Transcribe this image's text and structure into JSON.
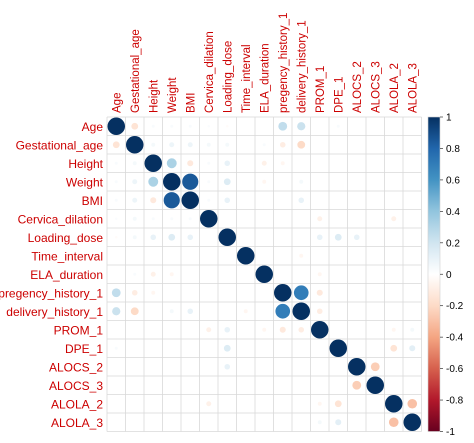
{
  "chart_data": {
    "type": "heatmap",
    "title": "",
    "variables": [
      "Age",
      "Gestational_age",
      "Height",
      "Weight",
      "BMI",
      "Cervica_dilation",
      "Loading_dose",
      "Time_interval",
      "ELA_duration",
      "pregency_history_1",
      "delivery_history_1",
      "PROM_1",
      "DPE_1",
      "ALOCS_2",
      "ALOCS_3",
      "ALOLA_2",
      "ALOLA_3"
    ],
    "matrix": [
      [
        1,
        -0.15,
        0.03,
        0.03,
        0.03,
        0.02,
        -0.02,
        0.0,
        0.0,
        0.25,
        0.22,
        0.0,
        0.03,
        0.0,
        0.0,
        0.0,
        0.0
      ],
      [
        -0.15,
        1,
        0.05,
        0.08,
        0.08,
        0.05,
        0.05,
        0.0,
        0.03,
        -0.1,
        -0.2,
        0.0,
        0.0,
        0.0,
        0.0,
        0.0,
        0.0
      ],
      [
        0.03,
        0.05,
        1,
        0.32,
        -0.12,
        0.03,
        0.1,
        0.0,
        -0.08,
        -0.05,
        0.0,
        0.0,
        0.0,
        0.0,
        0.0,
        0.0,
        0.0
      ],
      [
        0.03,
        0.08,
        0.32,
        1,
        0.85,
        0.03,
        0.15,
        0.0,
        -0.05,
        0.0,
        0.05,
        0.0,
        0.0,
        0.0,
        0.0,
        0.0,
        0.0
      ],
      [
        0.03,
        0.08,
        -0.12,
        0.85,
        1,
        0.03,
        0.1,
        0.0,
        0.0,
        0.0,
        0.1,
        0.0,
        0.0,
        0.0,
        0.0,
        0.0,
        0.0
      ],
      [
        0.02,
        0.05,
        0.03,
        0.03,
        0.03,
        1,
        0.0,
        0.0,
        0.0,
        0.0,
        0.0,
        -0.08,
        0.0,
        0.0,
        0.0,
        -0.08,
        0.0
      ],
      [
        -0.02,
        0.05,
        0.1,
        0.15,
        0.1,
        0.0,
        1,
        0.0,
        0.0,
        0.0,
        0.0,
        0.1,
        0.15,
        0.1,
        0.0,
        0.0,
        0.0
      ],
      [
        0.0,
        0.0,
        0.0,
        0.0,
        0.0,
        0.0,
        0.0,
        1,
        0.0,
        0.0,
        -0.05,
        0.0,
        0.0,
        0.0,
        0.0,
        0.0,
        0.0
      ],
      [
        0.0,
        0.03,
        -0.08,
        -0.05,
        0.0,
        0.0,
        0.0,
        0.0,
        1,
        0.0,
        0.0,
        -0.05,
        0.0,
        0.0,
        0.0,
        0.0,
        0.0
      ],
      [
        0.25,
        -0.1,
        -0.05,
        0.0,
        0.0,
        0.0,
        0.0,
        0.0,
        0.0,
        1,
        0.7,
        -0.12,
        0.0,
        0.0,
        0.0,
        0.0,
        0.0
      ],
      [
        0.22,
        -0.2,
        0.0,
        0.05,
        0.1,
        0.0,
        0.0,
        -0.05,
        0.0,
        0.7,
        1,
        -0.1,
        0.0,
        0.0,
        0.0,
        0.0,
        0.0
      ],
      [
        0.0,
        0.0,
        0.0,
        0.0,
        0.0,
        -0.08,
        0.1,
        0.0,
        -0.05,
        -0.12,
        -0.1,
        1,
        0.0,
        0.0,
        0.0,
        -0.05,
        0.05
      ],
      [
        0.03,
        0.0,
        0.0,
        0.0,
        0.0,
        0.0,
        0.15,
        0.0,
        0.0,
        0.0,
        0.0,
        0.0,
        1,
        0.0,
        0.0,
        -0.15,
        0.12
      ],
      [
        0.0,
        0.0,
        0.0,
        0.0,
        0.0,
        0.0,
        0.1,
        0.0,
        0.0,
        0.0,
        0.0,
        0.0,
        0.0,
        1,
        -0.25,
        0.0,
        0.0
      ],
      [
        0.0,
        0.0,
        0.0,
        0.0,
        0.0,
        0.0,
        0.0,
        0.0,
        0.0,
        0.0,
        0.0,
        0.0,
        0.0,
        -0.25,
        1,
        0.0,
        0.0
      ],
      [
        0.0,
        0.0,
        0.0,
        0.0,
        0.0,
        -0.08,
        0.0,
        0.0,
        0.0,
        0.0,
        0.0,
        -0.05,
        -0.15,
        0.0,
        0.0,
        1,
        -0.3
      ],
      [
        0.0,
        0.0,
        0.0,
        0.0,
        0.0,
        0.0,
        0.0,
        0.0,
        0.0,
        0.0,
        0.0,
        0.05,
        0.12,
        0.0,
        0.0,
        -0.3,
        1
      ]
    ],
    "color_scale": {
      "range": [
        -1,
        1
      ],
      "ticks": [
        "1",
        "0.8",
        "0.6",
        "0.4",
        "0.2",
        "0",
        "-0.2",
        "-0.4",
        "-0.6",
        "-0.8",
        "-1"
      ],
      "colors": {
        "negative": "#67001f",
        "zero": "#ffffff",
        "positive": "#053061"
      }
    },
    "label_color": "#cc0000",
    "grid": true,
    "legend": "right"
  }
}
